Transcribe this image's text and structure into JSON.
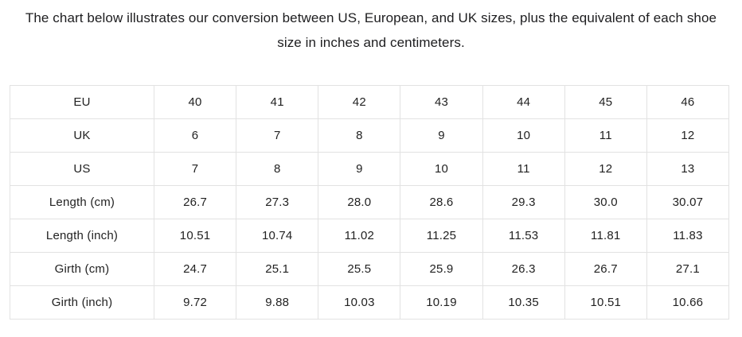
{
  "chart_data": {
    "type": "table",
    "title": "The chart below illustrates our conversion between US, European, and UK sizes, plus the equivalent of each shoe size in inches and centimeters.",
    "row_headers": [
      "EU",
      "UK",
      "US",
      "Length (cm)",
      "Length (inch)",
      "Girth (cm)",
      "Girth (inch)"
    ],
    "rows": [
      {
        "label": "EU",
        "values": [
          "40",
          "41",
          "42",
          "43",
          "44",
          "45",
          "46"
        ]
      },
      {
        "label": "UK",
        "values": [
          "6",
          "7",
          "8",
          "9",
          "10",
          "11",
          "12"
        ]
      },
      {
        "label": "US",
        "values": [
          "7",
          "8",
          "9",
          "10",
          "11",
          "12",
          "13"
        ]
      },
      {
        "label": "Length (cm)",
        "values": [
          "26.7",
          "27.3",
          "28.0",
          "28.6",
          "29.3",
          "30.0",
          "30.07"
        ]
      },
      {
        "label": "Length (inch)",
        "values": [
          "10.51",
          "10.74",
          "11.02",
          "11.25",
          "11.53",
          "11.81",
          "11.83"
        ]
      },
      {
        "label": "Girth (cm)",
        "values": [
          "24.7",
          "25.1",
          "25.5",
          "25.9",
          "26.3",
          "26.7",
          "27.1"
        ]
      },
      {
        "label": "Girth (inch)",
        "values": [
          "9.72",
          "9.88",
          "10.03",
          "10.19",
          "10.35",
          "10.51",
          "10.66"
        ]
      }
    ],
    "grid": true,
    "legend": false
  },
  "colors": {
    "background": "#ffffff",
    "heading_text": "#1d1d1f",
    "cell_text": "#222222",
    "border": "#e2e2e2"
  }
}
